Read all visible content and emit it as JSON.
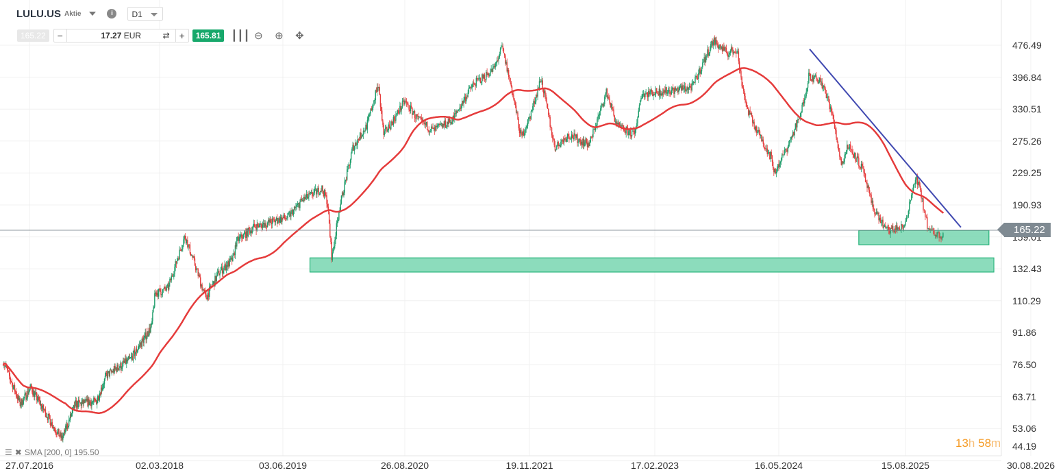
{
  "header": {
    "symbol": "LULU.US",
    "instrument_type": "Aktie",
    "info_icon": "info-icon",
    "timeframe": "D1"
  },
  "trade_bar": {
    "bid": "165.22",
    "quantity": "17.27",
    "currency": "EUR",
    "ask": "165.81",
    "minus": "−",
    "plus": "+",
    "swap_icon": "⇄"
  },
  "tools": [
    "candles-icon",
    "zoom-out-icon",
    "zoom-in-icon",
    "move-icon"
  ],
  "indicator": {
    "label": "SMA [200, 0] 195.50"
  },
  "countdown": {
    "hours": "13",
    "h": "h",
    "minutes": "58",
    "m": "m"
  },
  "colors": {
    "up": "#1f9d6b",
    "down": "#e53b3b",
    "sma": "#e53b3b",
    "trendline": "#3f48b0",
    "zone_fill": "#7fd8b5",
    "zone_border": "#26b37a",
    "price_line": "#7f8a92",
    "countdown": "#f59a23"
  },
  "chart_data": {
    "type": "candlestick",
    "symbol": "LULU.US",
    "scale": "log",
    "current_price": "165.22",
    "y_ticks": [
      "476.49",
      "396.84",
      "330.51",
      "275.26",
      "229.25",
      "190.93",
      "159.01",
      "132.43",
      "110.29",
      "91.86",
      "76.50",
      "63.71",
      "53.06",
      "44.19"
    ],
    "x_ticks": [
      "27.07.2016",
      "02.03.2018",
      "03.06.2019",
      "26.08.2020",
      "19.11.2021",
      "17.02.2023",
      "16.05.2024",
      "15.08.2025",
      "30.08.2026"
    ],
    "grid": true,
    "price_path_approx": [
      [
        "2016-04-01",
        78
      ],
      [
        "2016-06-16",
        61
      ],
      [
        "2016-08-02",
        67
      ],
      [
        "2016-11-18",
        53
      ],
      [
        "2016-12-20",
        50
      ],
      [
        "2017-02-18",
        61
      ],
      [
        "2017-05-22",
        62
      ],
      [
        "2017-07-07",
        72
      ],
      [
        "2017-10-24",
        79
      ],
      [
        "2018-01-25",
        95
      ],
      [
        "2018-02-10",
        115
      ],
      [
        "2018-04-01",
        118
      ],
      [
        "2018-06-04",
        160
      ],
      [
        "2018-07-12",
        135
      ],
      [
        "2018-08-20",
        112
      ],
      [
        "2018-10-10",
        130
      ],
      [
        "2018-11-30",
        140
      ],
      [
        "2018-12-12",
        155
      ],
      [
        "2019-02-14",
        168
      ],
      [
        "2019-04-18",
        173
      ],
      [
        "2019-06-21",
        178
      ],
      [
        "2019-08-10",
        195
      ],
      [
        "2019-10-25",
        210
      ],
      [
        "2019-11-14",
        195
      ],
      [
        "2019-12-01",
        140
      ],
      [
        "2019-12-27",
        185
      ],
      [
        "2020-02-16",
        265
      ],
      [
        "2020-04-07",
        300
      ],
      [
        "2020-05-20",
        380
      ],
      [
        "2020-06-09",
        285
      ],
      [
        "2020-08-26",
        345
      ],
      [
        "2020-10-16",
        310
      ],
      [
        "2020-12-06",
        292
      ],
      [
        "2021-02-13",
        310
      ],
      [
        "2021-04-28",
        380
      ],
      [
        "2021-07-13",
        415
      ],
      [
        "2021-08-12",
        470
      ],
      [
        "2021-09-13",
        380
      ],
      [
        "2021-10-20",
        280
      ],
      [
        "2021-11-23",
        320
      ],
      [
        "2021-12-31",
        395
      ],
      [
        "2022-02-19",
        265
      ],
      [
        "2022-04-10",
        285
      ],
      [
        "2022-06-24",
        270
      ],
      [
        "2022-08-26",
        365
      ],
      [
        "2022-10-03",
        300
      ],
      [
        "2022-12-05",
        285
      ],
      [
        "2022-12-30",
        360
      ],
      [
        "2023-03-01",
        365
      ],
      [
        "2023-05-15",
        370
      ],
      [
        "2023-07-05",
        375
      ],
      [
        "2023-07-30",
        410
      ],
      [
        "2023-09-19",
        490
      ],
      [
        "2023-11-08",
        455
      ],
      [
        "2023-12-16",
        465
      ],
      [
        "2023-12-28",
        400
      ],
      [
        "2024-01-22",
        330
      ],
      [
        "2024-02-29",
        290
      ],
      [
        "2024-04-19",
        250
      ],
      [
        "2024-05-01",
        230
      ],
      [
        "2024-06-15",
        265
      ],
      [
        "2024-08-03",
        320
      ],
      [
        "2024-09-01",
        400
      ],
      [
        "2024-10-16",
        385
      ],
      [
        "2024-11-21",
        330
      ],
      [
        "2024-12-28",
        240
      ],
      [
        "2025-01-22",
        270
      ],
      [
        "2025-03-12",
        235
      ],
      [
        "2025-04-18",
        190
      ],
      [
        "2025-06-06",
        165
      ],
      [
        "2025-08-10",
        168
      ],
      [
        "2025-09-17",
        225
      ],
      [
        "2025-10-24",
        165
      ],
      [
        "2025-12-01",
        160
      ],
      [
        "2025-12-08",
        165.22
      ]
    ],
    "indicators": [
      {
        "name": "SMA [200, 0]",
        "last": 195.5
      }
    ],
    "trendline": {
      "from": [
        "2024-09-04",
        466
      ],
      "to": [
        "2026-01-30",
        168
      ]
    },
    "zones": [
      {
        "from": "2025-02-28",
        "to": "2026-04-25",
        "high": 165,
        "low": 152
      },
      {
        "from": "2019-09-11",
        "to": "2026-05-10",
        "high": 141,
        "low": 130
      }
    ]
  }
}
